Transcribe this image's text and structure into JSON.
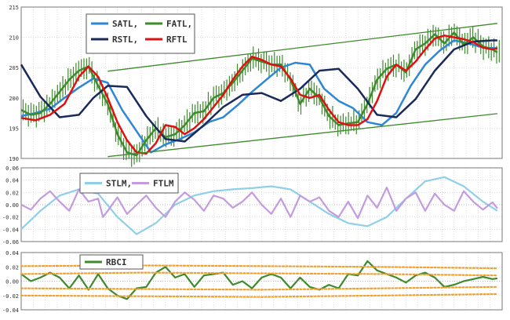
{
  "chart_data": [
    {
      "type": "line",
      "panel": "price",
      "ylim": [
        190,
        215
      ],
      "ticks": [
        "215",
        "210",
        "205",
        "200",
        "195",
        "190"
      ],
      "tick_values": [
        215,
        210,
        205,
        200,
        195,
        190
      ],
      "grid": true,
      "legend": [
        "SATL,",
        "FATL,",
        "RSTL,",
        "RFTL"
      ],
      "legend_position": "top-left",
      "colors": {
        "SATL": "#2e86d6",
        "FATL": "#3d8b2c",
        "RSTL": "#1a2a5a",
        "RFTL": "#e01010",
        "channel": "#3d8b2c",
        "bars": "#3d8b2c"
      },
      "x_range": [
        0,
        100
      ],
      "series": [
        {
          "name": "SATL",
          "x": [
            0,
            3,
            6,
            9,
            12,
            15,
            18,
            21,
            24,
            27,
            30,
            33,
            36,
            39,
            42,
            45,
            48,
            51,
            54,
            57,
            60,
            63,
            66,
            69,
            72,
            75,
            78,
            81,
            84,
            87,
            90,
            93,
            96,
            99
          ],
          "y": [
            197,
            197.5,
            198.2,
            200,
            201.7,
            203.2,
            202.5,
            198,
            194.5,
            191,
            192.3,
            193.2,
            194.3,
            196,
            196.8,
            198.8,
            201,
            203,
            205,
            205.8,
            205.5,
            201.5,
            199.5,
            198.3,
            196,
            195.5,
            197.5,
            202,
            205.5,
            207.8,
            209.5,
            209,
            208.3,
            208.2
          ]
        },
        {
          "name": "FATL",
          "x": [
            0,
            2,
            4,
            6,
            8,
            10,
            12,
            14,
            16,
            18,
            20,
            22,
            24,
            26,
            28,
            30,
            32,
            34,
            36,
            38,
            40,
            42,
            44,
            46,
            48,
            50,
            52,
            54,
            56,
            58,
            60,
            62,
            64,
            66,
            68,
            70,
            72,
            74,
            76,
            78,
            80,
            82,
            84,
            86,
            88,
            90,
            92,
            94,
            96,
            98,
            99
          ],
          "y": [
            198,
            197.2,
            197.5,
            199,
            201,
            203,
            204.5,
            205.2,
            202,
            199,
            194,
            191,
            190.5,
            193,
            195,
            193.5,
            194,
            195.5,
            197.5,
            197.8,
            200,
            200.8,
            202.5,
            204.5,
            206.5,
            206,
            205.5,
            205.5,
            203,
            199,
            201.5,
            200,
            197,
            195.5,
            195.8,
            196,
            199,
            203,
            204.8,
            205.5,
            204.2,
            208,
            209,
            210.5,
            209,
            210.8,
            208.8,
            210,
            208.5,
            208,
            207.5
          ]
        },
        {
          "name": "RSTL",
          "x": [
            0,
            4,
            8,
            12,
            15,
            18,
            22,
            26,
            30,
            34,
            38,
            42,
            46,
            50,
            54,
            58,
            62,
            66,
            70,
            74,
            78,
            82,
            86,
            90,
            94,
            98,
            99
          ],
          "y": [
            205.5,
            200.2,
            196.8,
            197.2,
            200,
            202,
            201.8,
            197,
            193.2,
            192.8,
            195.5,
            198.5,
            200.5,
            200.8,
            199.5,
            201.5,
            204.5,
            204.8,
            201.5,
            197.2,
            196.8,
            199.8,
            204.5,
            208,
            209.3,
            209.5,
            209.5
          ]
        },
        {
          "name": "RFTL",
          "x": [
            0,
            3,
            6,
            9,
            12,
            14,
            16,
            18,
            20,
            22,
            24,
            26,
            28,
            30,
            32,
            34,
            36,
            38,
            40,
            42,
            44,
            46,
            48,
            50,
            52,
            54,
            56,
            58,
            60,
            62,
            64,
            66,
            68,
            70,
            72,
            74,
            76,
            78,
            80,
            82,
            84,
            86,
            88,
            90,
            92,
            94,
            96,
            98,
            99
          ],
          "y": [
            196.7,
            196.3,
            197.2,
            199,
            203.5,
            205.2,
            203.5,
            200,
            196,
            193,
            191,
            190.8,
            192.5,
            195.5,
            195.2,
            194,
            195,
            196.5,
            198.5,
            200.5,
            203,
            205.2,
            206.8,
            206.3,
            205.5,
            205.2,
            203.2,
            200.5,
            200,
            200.5,
            198,
            196,
            195.5,
            195.5,
            196.5,
            199.5,
            203.5,
            205.5,
            204.5,
            206,
            208,
            209.8,
            210.3,
            210,
            209.7,
            209.2,
            208.3,
            208,
            208.2
          ]
        },
        {
          "name": "channel-upper",
          "x": [
            18,
            99
          ],
          "y": [
            204.4,
            212.3
          ]
        },
        {
          "name": "channel-lower",
          "x": [
            18,
            99
          ],
          "y": [
            190.3,
            197.4
          ]
        }
      ]
    },
    {
      "type": "line",
      "panel": "stlm-ftlm",
      "ylim": [
        -0.06,
        0.06
      ],
      "ticks": [
        "0.06",
        "0.04",
        "0.02",
        "0.00",
        "-0.02",
        "-0.04",
        "-0.06"
      ],
      "tick_values": [
        0.06,
        0.04,
        0.02,
        0,
        -0.02,
        -0.04,
        -0.06
      ],
      "grid": true,
      "legend": [
        "STLM,",
        "FTLM"
      ],
      "legend_position": "top-left",
      "colors": {
        "STLM": "#8fd0e8",
        "FTLM": "#c49be0"
      },
      "x_range": [
        0,
        100
      ],
      "series": [
        {
          "name": "STLM",
          "x": [
            0,
            4,
            8,
            12,
            16,
            20,
            24,
            28,
            32,
            36,
            40,
            44,
            48,
            52,
            56,
            60,
            64,
            68,
            72,
            76,
            80,
            84,
            88,
            92,
            96,
            99
          ],
          "y": [
            -0.04,
            -0.01,
            0.015,
            0.025,
            0.018,
            -0.02,
            -0.048,
            -0.03,
            0,
            0.015,
            0.022,
            0.025,
            0.027,
            0.03,
            0.025,
            0.005,
            -0.015,
            -0.03,
            -0.035,
            -0.02,
            0.01,
            0.038,
            0.045,
            0.03,
            0.005,
            -0.01
          ]
        },
        {
          "name": "FTLM",
          "x": [
            0,
            2,
            4,
            6,
            8,
            10,
            12,
            14,
            16,
            17,
            18,
            20,
            22,
            24,
            26,
            28,
            30,
            32,
            34,
            36,
            38,
            40,
            42,
            44,
            46,
            48,
            50,
            52,
            54,
            56,
            58,
            60,
            62,
            64,
            66,
            68,
            70,
            72,
            74,
            76,
            78,
            80,
            82,
            84,
            86,
            88,
            90,
            92,
            94,
            96,
            98,
            99
          ],
          "y": [
            0,
            -0.008,
            0.01,
            0.022,
            0.005,
            -0.01,
            0.025,
            0.005,
            0.01,
            -0.02,
            -0.01,
            0.012,
            -0.015,
            0,
            0.015,
            -0.005,
            -0.02,
            0.005,
            0.02,
            0.008,
            -0.01,
            0.015,
            0.01,
            -0.005,
            0.005,
            0.02,
            0,
            -0.015,
            0.01,
            -0.02,
            0.015,
            0.005,
            0.012,
            -0.01,
            -0.02,
            0.005,
            -0.022,
            0.015,
            -0.005,
            0.028,
            -0.01,
            0.01,
            0.02,
            -0.01,
            0.018,
            0,
            -0.01,
            0.022,
            0.005,
            -0.008,
            0.004,
            -0.006
          ]
        }
      ]
    },
    {
      "type": "line",
      "panel": "rbci",
      "ylim": [
        -0.04,
        0.04
      ],
      "ticks": [
        "0.04",
        "0.02",
        "0.00",
        "-0.02",
        "-0.04"
      ],
      "tick_values": [
        0.04,
        0.02,
        0,
        -0.02,
        -0.04
      ],
      "grid": true,
      "legend": [
        "RBCI"
      ],
      "legend_position": "top-left",
      "colors": {
        "RBCI": "#3d8b2c",
        "bands": "#f0a030"
      },
      "x_range": [
        0,
        100
      ],
      "series": [
        {
          "name": "RBCI",
          "x": [
            0,
            2,
            4,
            6,
            8,
            10,
            12,
            14,
            16,
            18,
            20,
            22,
            24,
            26,
            28,
            30,
            32,
            34,
            36,
            38,
            40,
            42,
            44,
            46,
            48,
            50,
            52,
            54,
            56,
            58,
            60,
            62,
            64,
            66,
            68,
            70,
            72,
            74,
            76,
            78,
            80,
            82,
            84,
            86,
            88,
            90,
            92,
            94,
            96,
            98,
            99
          ],
          "y": [
            0.01,
            0,
            0.005,
            0.012,
            0.005,
            -0.01,
            0.008,
            -0.012,
            0.01,
            -0.01,
            -0.02,
            -0.025,
            -0.01,
            -0.008,
            0.012,
            0.02,
            0.005,
            0.01,
            -0.008,
            0.008,
            0.01,
            0.012,
            -0.005,
            0,
            -0.01,
            0.005,
            0.01,
            0.005,
            -0.01,
            0.005,
            -0.008,
            -0.012,
            -0.005,
            -0.01,
            0.01,
            0.008,
            0.028,
            0.015,
            0.01,
            0.005,
            -0.002,
            0.008,
            0.012,
            0.005,
            -0.008,
            -0.005,
            0,
            0.003,
            0.006,
            0.003,
            0.004
          ]
        },
        {
          "name": "band-upper-outer",
          "x": [
            0,
            25,
            50,
            75,
            99
          ],
          "y": [
            0.021,
            0.022,
            0.021,
            0.02,
            0.018
          ]
        },
        {
          "name": "band-upper-inner",
          "x": [
            0,
            25,
            50,
            75,
            99
          ],
          "y": [
            0.01,
            0.012,
            0.011,
            0.01,
            0.008
          ]
        },
        {
          "name": "band-lower-inner",
          "x": [
            0,
            25,
            50,
            75,
            99
          ],
          "y": [
            -0.01,
            -0.011,
            -0.012,
            -0.01,
            -0.008
          ]
        },
        {
          "name": "band-lower-outer",
          "x": [
            0,
            25,
            50,
            75,
            99
          ],
          "y": [
            -0.02,
            -0.021,
            -0.022,
            -0.02,
            -0.018
          ]
        }
      ]
    }
  ]
}
